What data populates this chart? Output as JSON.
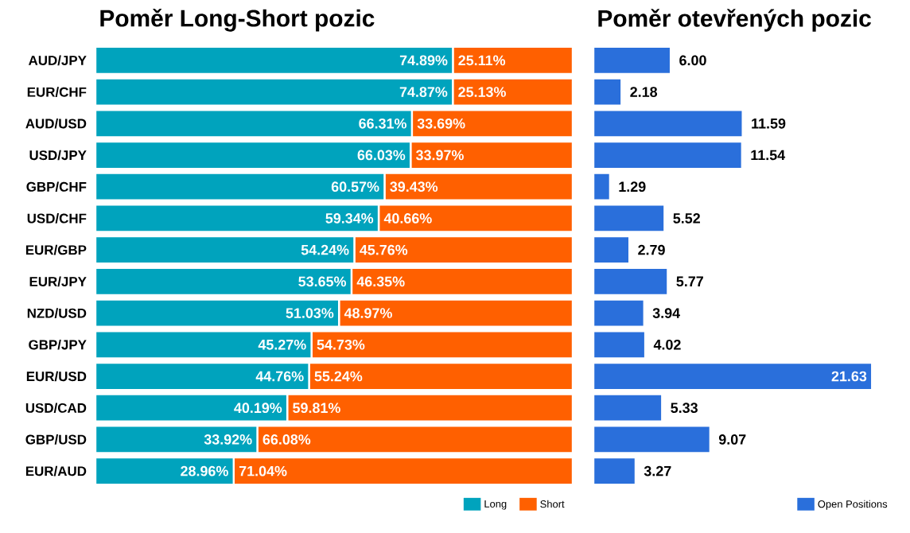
{
  "chart_data": [
    {
      "type": "bar",
      "orientation": "horizontal",
      "stacked": true,
      "title": "Poměr Long-Short pozic",
      "categories": [
        "AUD/JPY",
        "EUR/CHF",
        "AUD/USD",
        "USD/JPY",
        "GBP/CHF",
        "USD/CHF",
        "EUR/GBP",
        "EUR/JPY",
        "NZD/USD",
        "GBP/JPY",
        "EUR/USD",
        "USD/CAD",
        "GBP/USD",
        "EUR/AUD"
      ],
      "xlim": [
        0,
        100
      ],
      "legend": "bottom right",
      "series": [
        {
          "name": "Long",
          "color": "#00a3bd",
          "values": [
            74.89,
            74.87,
            66.31,
            66.03,
            60.57,
            59.34,
            54.24,
            53.65,
            51.03,
            45.27,
            44.76,
            40.19,
            33.92,
            28.96
          ],
          "value_labels": [
            "74.89%",
            "74.87%",
            "66.31%",
            "66.03%",
            "60.57%",
            "59.34%",
            "54.24%",
            "53.65%",
            "51.03%",
            "45.27%",
            "44.76%",
            "40.19%",
            "33.92%",
            "28.96%"
          ]
        },
        {
          "name": "Short",
          "color": "#ff6000",
          "values": [
            25.11,
            25.13,
            33.69,
            33.97,
            39.43,
            40.66,
            45.76,
            46.35,
            48.97,
            54.73,
            55.24,
            59.81,
            66.08,
            71.04
          ],
          "value_labels": [
            "25.11%",
            "25.13%",
            "33.69%",
            "33.97%",
            "39.43%",
            "40.66%",
            "45.76%",
            "46.35%",
            "48.97%",
            "54.73%",
            "55.24%",
            "59.81%",
            "66.08%",
            "71.04%"
          ]
        }
      ]
    },
    {
      "type": "bar",
      "orientation": "horizontal",
      "title": "Poměr otevřených pozic",
      "legend": "bottom right",
      "categories": [
        null,
        null,
        null,
        null,
        null,
        null,
        null,
        null,
        null,
        null,
        null,
        null,
        null,
        null
      ],
      "series": [
        {
          "name": "Open Positions",
          "color": "#2a6fdb",
          "values": [
            6.0,
            2.18,
            11.59,
            11.54,
            1.29,
            5.52,
            2.79,
            5.77,
            3.94,
            4.02,
            21.63,
            5.33,
            9.07,
            3.27
          ],
          "value_labels": [
            "6.00",
            "2.18",
            "11.59",
            "11.54",
            "1.29",
            "5.52",
            "2.79",
            "5.77",
            "3.94",
            "4.02",
            "21.63",
            "5.33",
            "9.07",
            "3.27"
          ]
        }
      ]
    }
  ]
}
